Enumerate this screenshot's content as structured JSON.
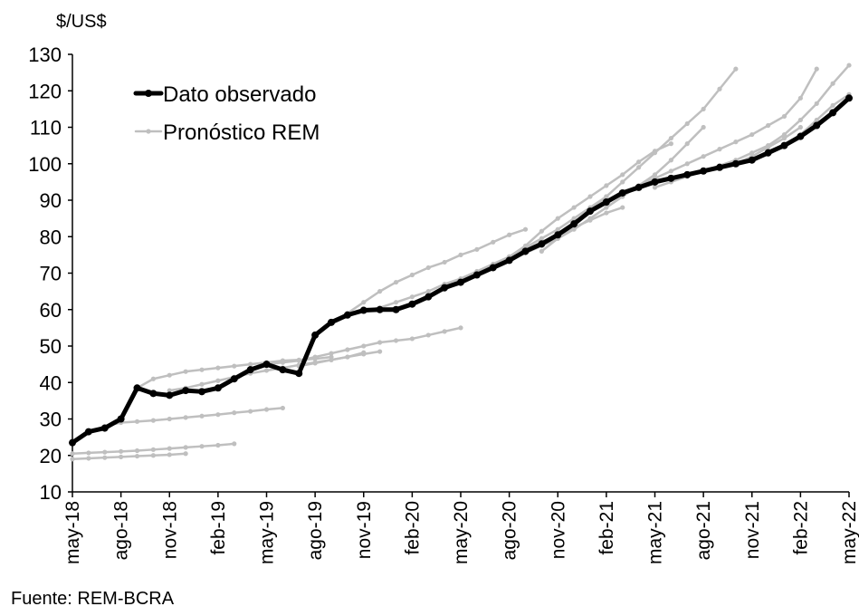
{
  "chart_data": {
    "type": "line",
    "y_unit_label": "$/US$",
    "source": "Fuente: REM-BCRA",
    "categories": [
      "may-18",
      null,
      null,
      "ago-18",
      null,
      null,
      "nov-18",
      null,
      null,
      "feb-19",
      null,
      null,
      "may-19",
      null,
      null,
      "ago-19",
      null,
      null,
      "nov-19",
      null,
      null,
      "feb-20",
      null,
      null,
      "may-20",
      null,
      null,
      "ago-20",
      null,
      null,
      "nov-20",
      null,
      null,
      "feb-21",
      null,
      null,
      "may-21",
      null,
      null,
      "ago-21",
      null,
      null,
      "nov-21",
      null,
      null,
      "feb-22",
      null,
      null,
      "may-22"
    ],
    "ylim": [
      10,
      130
    ],
    "yticks": [
      10,
      20,
      30,
      40,
      50,
      60,
      70,
      80,
      90,
      100,
      110,
      120,
      130
    ],
    "legend": "upper-left",
    "series": [
      {
        "name": "Dato observado",
        "color": "#000000",
        "values": [
          23.5,
          26.5,
          27.5,
          30,
          38.5,
          37,
          36.5,
          37.8,
          37.5,
          38.5,
          41,
          43.5,
          45,
          43.5,
          42.5,
          53,
          56.5,
          58.5,
          59.8,
          60,
          60,
          61.5,
          63.5,
          66,
          67.5,
          69.5,
          71.5,
          73.5,
          76,
          78,
          80.5,
          83.5,
          87,
          89.5,
          92,
          93.5,
          95,
          96,
          97,
          98,
          99,
          100,
          101,
          103,
          105,
          107.5,
          110.5,
          114,
          118
        ]
      },
      {
        "name": "Pronóstico REM",
        "color": "#bfbfbf",
        "values": [
          19,
          19.2,
          19.4,
          19.6,
          19.8,
          20,
          20.2,
          20.5,
          null,
          null,
          null,
          null,
          null,
          null,
          null,
          null,
          null,
          null,
          null,
          null,
          null,
          null,
          null,
          null,
          null,
          null,
          null,
          null,
          null,
          null,
          null,
          null,
          null,
          null,
          null,
          null,
          null,
          null,
          null,
          null,
          null,
          null,
          null,
          null,
          null,
          null,
          null,
          null,
          null
        ]
      },
      {
        "color": "#bfbfbf",
        "values": [
          20.5,
          20.7,
          20.9,
          21.1,
          21.3,
          21.6,
          21.9,
          22.2,
          22.5,
          22.8,
          23.2,
          null,
          null,
          null,
          null,
          null,
          null,
          null,
          null,
          null,
          null,
          null,
          null,
          null,
          null,
          null,
          null,
          null,
          null,
          null,
          null,
          null,
          null,
          null,
          null,
          null,
          null,
          null,
          null,
          null,
          null,
          null,
          null,
          null,
          null,
          null,
          null,
          null,
          null
        ]
      },
      {
        "color": "#bfbfbf",
        "values": [
          null,
          26.5,
          28,
          29,
          29.3,
          29.6,
          30,
          30.4,
          30.8,
          31.2,
          31.7,
          32.1,
          32.6,
          33,
          null,
          null,
          null,
          null,
          null,
          null,
          null,
          null,
          null,
          null,
          null,
          null,
          null,
          null,
          null,
          null,
          null,
          null,
          null,
          null,
          null,
          null,
          null,
          null,
          null,
          null,
          null,
          null,
          null,
          null,
          null,
          null,
          null,
          null,
          null
        ]
      },
      {
        "color": "#bfbfbf",
        "values": [
          null,
          null,
          null,
          null,
          38.5,
          41,
          42,
          43,
          43.5,
          44,
          44.5,
          45,
          45.5,
          46,
          46.2,
          46.5,
          47,
          null,
          null,
          null,
          null,
          null,
          null,
          null,
          null,
          null,
          null,
          null,
          null,
          null,
          null,
          null,
          null,
          null,
          null,
          null,
          null,
          null,
          null,
          null,
          null,
          null,
          null,
          null,
          null,
          null,
          null,
          null,
          null
        ]
      },
      {
        "color": "#bfbfbf",
        "values": [
          null,
          null,
          null,
          null,
          null,
          null,
          37.8,
          38.5,
          39.5,
          40.5,
          41.5,
          42.5,
          43.3,
          44,
          44.8,
          45.5,
          46.2,
          47,
          48.2,
          null,
          null,
          null,
          null,
          null,
          null,
          null,
          null,
          null,
          null,
          null,
          null,
          null,
          null,
          null,
          null,
          null,
          null,
          null,
          null,
          null,
          null,
          null,
          null,
          null,
          null,
          null,
          null,
          null,
          null
        ]
      },
      {
        "color": "#bfbfbf",
        "values": [
          null,
          null,
          null,
          null,
          null,
          null,
          null,
          null,
          null,
          null,
          null,
          null,
          45,
          45.5,
          46,
          47,
          48,
          49,
          50,
          51,
          51.5,
          52,
          53,
          54,
          55,
          null,
          null,
          null,
          null,
          null,
          null,
          null,
          null,
          null,
          null,
          null,
          null,
          null,
          null,
          null,
          null,
          null,
          null,
          null,
          null,
          null,
          null,
          null,
          null
        ]
      },
      {
        "color": "#bfbfbf",
        "values": [
          null,
          null,
          null,
          null,
          null,
          null,
          null,
          null,
          null,
          null,
          null,
          null,
          null,
          null,
          44.5,
          45.3,
          46.2,
          47,
          47.8,
          48.5,
          null,
          null,
          null,
          null,
          null,
          null,
          null,
          null,
          null,
          null,
          null,
          null,
          null,
          null,
          null,
          null,
          null,
          null,
          null,
          null,
          null,
          null,
          null,
          null,
          null,
          null,
          null,
          null,
          null
        ]
      },
      {
        "color": "#bfbfbf",
        "values": [
          null,
          null,
          null,
          null,
          null,
          null,
          null,
          null,
          null,
          null,
          null,
          null,
          null,
          null,
          null,
          null,
          56.5,
          59,
          62,
          65,
          67.5,
          69.5,
          71.5,
          73,
          75,
          76.5,
          78.5,
          80.5,
          82,
          null,
          null,
          null,
          null,
          null,
          null,
          null,
          null,
          null,
          null,
          null,
          null,
          null,
          null,
          null,
          null,
          null,
          null,
          null,
          null
        ]
      },
      {
        "color": "#bfbfbf",
        "values": [
          null,
          null,
          null,
          null,
          null,
          null,
          null,
          null,
          null,
          null,
          null,
          null,
          null,
          null,
          null,
          null,
          null,
          null,
          59.8,
          60.5,
          62,
          63.5,
          65,
          67,
          68.5,
          70.5,
          72.5,
          74.5,
          76.5,
          78.5,
          80.5,
          82.5,
          84.5,
          86.5,
          88,
          null,
          null,
          null,
          null,
          null,
          null,
          null,
          null,
          null,
          null,
          null,
          null,
          null,
          null
        ]
      },
      {
        "color": "#bfbfbf",
        "values": [
          null,
          null,
          null,
          null,
          null,
          null,
          null,
          null,
          null,
          null,
          null,
          null,
          null,
          null,
          null,
          null,
          null,
          null,
          null,
          null,
          null,
          61.5,
          63.5,
          65.5,
          67.5,
          69.5,
          72,
          74.5,
          77,
          79.5,
          82,
          85,
          88,
          91,
          null,
          null,
          null,
          null,
          null,
          null,
          null,
          null,
          null,
          null,
          null,
          null,
          null,
          null,
          null
        ]
      },
      {
        "color": "#bfbfbf",
        "values": [
          null,
          null,
          null,
          null,
          null,
          null,
          null,
          null,
          null,
          null,
          null,
          null,
          null,
          null,
          null,
          null,
          null,
          null,
          null,
          null,
          null,
          null,
          null,
          null,
          67.5,
          69.5,
          72,
          74.5,
          77.5,
          81.5,
          85,
          88,
          91,
          94,
          97,
          100.5,
          103.5,
          105.5,
          null,
          null,
          null,
          null,
          null,
          null,
          null,
          null,
          null,
          null,
          null
        ]
      },
      {
        "color": "#bfbfbf",
        "values": [
          null,
          null,
          null,
          null,
          null,
          null,
          null,
          null,
          null,
          null,
          null,
          null,
          null,
          null,
          null,
          null,
          null,
          null,
          null,
          null,
          null,
          null,
          null,
          null,
          null,
          null,
          null,
          73.5,
          75.5,
          77.5,
          79.5,
          82,
          85,
          88,
          91,
          94,
          97,
          101,
          105.5,
          110,
          null,
          null,
          null,
          null,
          null,
          null,
          null,
          null,
          null
        ]
      },
      {
        "color": "#bfbfbf",
        "values": [
          null,
          null,
          null,
          null,
          null,
          null,
          null,
          null,
          null,
          null,
          null,
          null,
          null,
          null,
          null,
          null,
          null,
          null,
          null,
          null,
          null,
          null,
          null,
          null,
          null,
          null,
          null,
          null,
          null,
          76,
          79.5,
          83,
          87,
          91,
          95,
          99,
          103,
          107,
          111,
          115,
          120.5,
          126,
          null,
          null,
          null,
          null,
          null,
          null,
          null
        ]
      },
      {
        "color": "#bfbfbf",
        "values": [
          null,
          null,
          null,
          null,
          null,
          null,
          null,
          null,
          null,
          null,
          null,
          null,
          null,
          null,
          null,
          null,
          null,
          null,
          null,
          null,
          null,
          null,
          null,
          null,
          null,
          null,
          null,
          null,
          null,
          null,
          null,
          null,
          null,
          89.5,
          92,
          94,
          96,
          98,
          100,
          102,
          104,
          106,
          108,
          110.5,
          113,
          118,
          126,
          null,
          null
        ]
      },
      {
        "color": "#bfbfbf",
        "values": [
          null,
          null,
          null,
          null,
          null,
          null,
          null,
          null,
          null,
          null,
          null,
          null,
          null,
          null,
          null,
          null,
          null,
          null,
          null,
          null,
          null,
          null,
          null,
          null,
          null,
          null,
          null,
          null,
          null,
          null,
          null,
          null,
          null,
          null,
          null,
          null,
          93.5,
          95,
          96.5,
          98,
          99.5,
          101,
          103,
          105,
          108,
          112,
          116.5,
          122,
          127
        ]
      },
      {
        "color": "#bfbfbf",
        "values": [
          null,
          null,
          null,
          null,
          null,
          null,
          null,
          null,
          null,
          null,
          null,
          null,
          null,
          null,
          null,
          null,
          null,
          null,
          null,
          null,
          null,
          null,
          null,
          null,
          null,
          null,
          null,
          null,
          null,
          null,
          null,
          null,
          null,
          null,
          null,
          null,
          null,
          null,
          null,
          98,
          99,
          100,
          101,
          102.5,
          105,
          108,
          112,
          116,
          119
        ]
      },
      {
        "color": "#bfbfbf",
        "values": [
          null,
          null,
          null,
          null,
          null,
          null,
          null,
          null,
          null,
          null,
          null,
          null,
          null,
          null,
          null,
          null,
          null,
          null,
          null,
          null,
          null,
          null,
          null,
          null,
          null,
          null,
          null,
          null,
          null,
          null,
          null,
          null,
          null,
          null,
          null,
          null,
          null,
          null,
          null,
          null,
          99,
          100,
          102,
          104.5,
          107,
          110,
          null,
          null,
          null
        ]
      }
    ]
  }
}
